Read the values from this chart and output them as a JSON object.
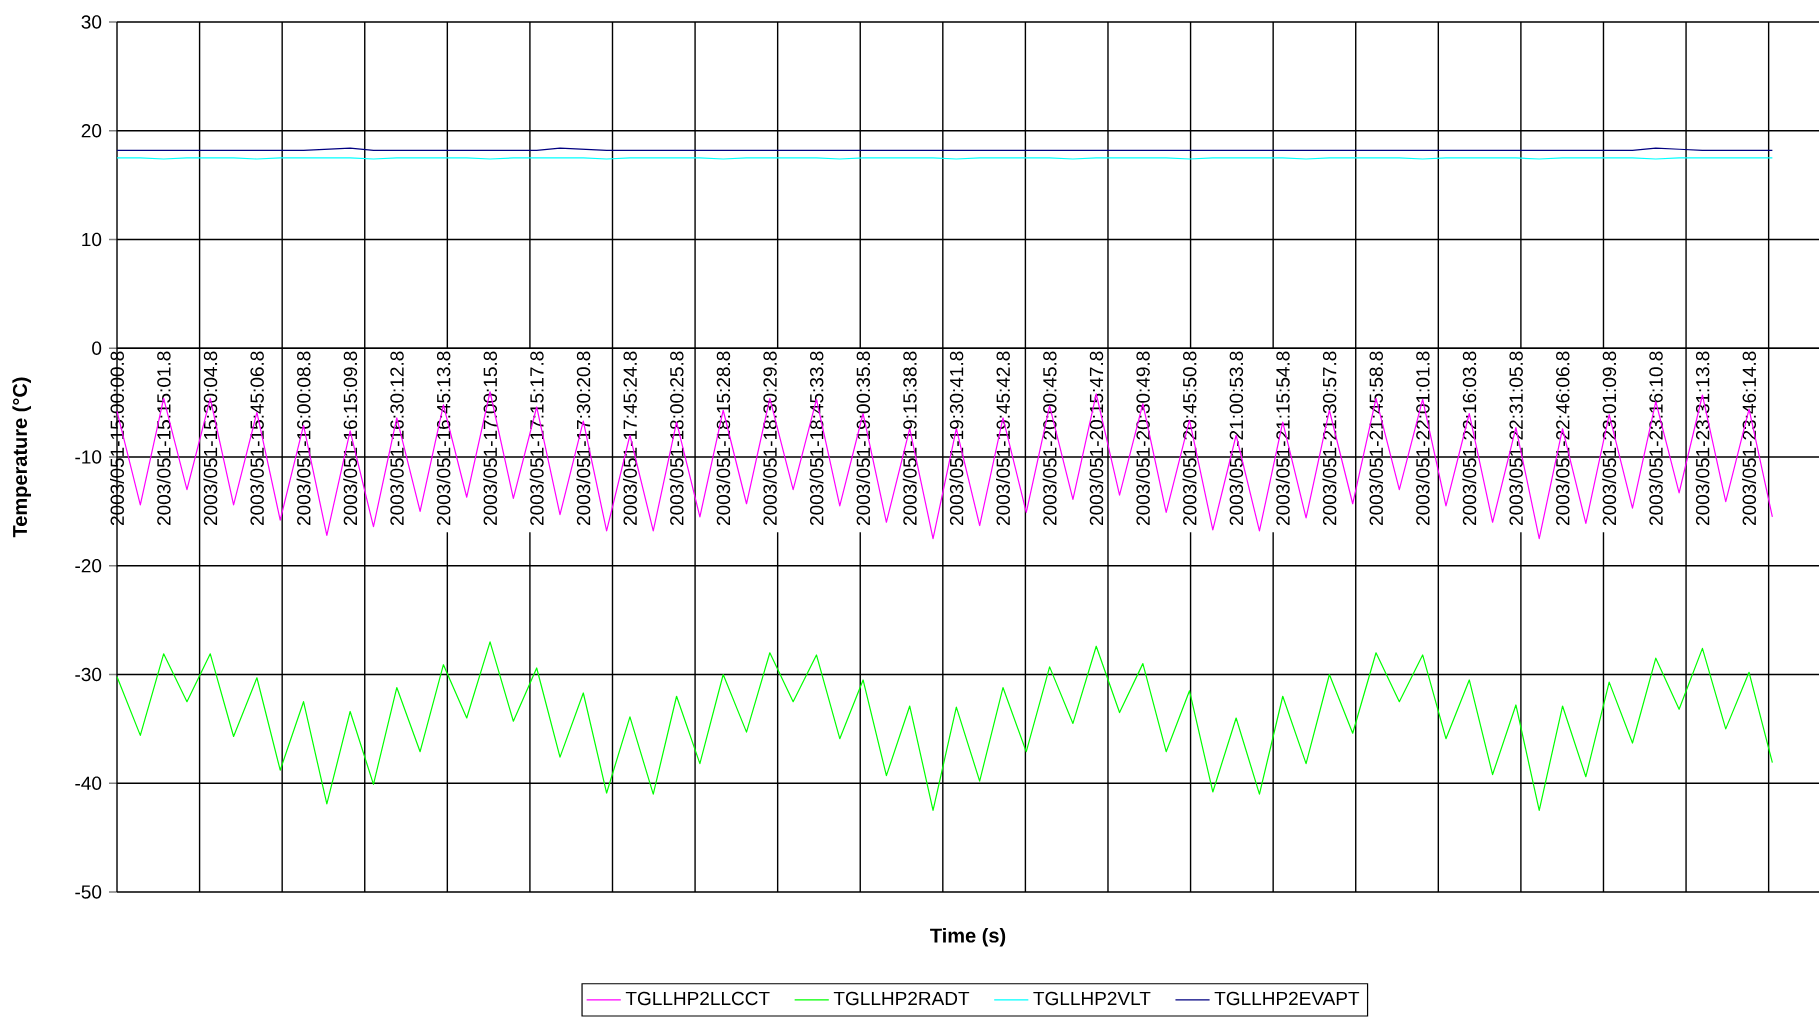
{
  "chart_data": {
    "type": "line",
    "xlabel": "Time (s)",
    "ylabel": "Temperature (°C)",
    "ylim": [
      -50,
      30
    ],
    "yticks": [
      -50,
      -40,
      -30,
      -20,
      -10,
      0,
      10,
      20,
      30
    ],
    "categories": [
      "2003/051-15:00:00.8",
      null,
      "2003/051-15:15:01.8",
      null,
      "2003/051-15:30:04.8",
      null,
      "2003/051-15:45:06.8",
      null,
      "2003/051-16:00:08.8",
      null,
      "2003/051-16:15:09.8",
      null,
      "2003/051-16:30:12.8",
      null,
      "2003/051-16:45:13.8",
      null,
      "2003/051-17:00:15.8",
      null,
      "2003/051-17:15:17.8",
      null,
      "2003/051-17:30:20.8",
      null,
      "2003/051-17:45:24.8",
      null,
      "2003/051-18:00:25.8",
      null,
      "2003/051-18:15:28.8",
      null,
      "2003/051-18:30:29.8",
      null,
      "2003/051-18:45:33.8",
      null,
      "2003/051-19:00:35.8",
      null,
      "2003/051-19:15:38.8",
      null,
      "2003/051-19:30:41.8",
      null,
      "2003/051-19:45:42.8",
      null,
      "2003/051-20:00:45.8",
      null,
      "2003/051-20:15:47.8",
      null,
      "2003/051-20:30:49.8",
      null,
      "2003/051-20:45:50.8",
      null,
      "2003/051-21:00:53.8",
      null,
      "2003/051-21:15:54.8",
      null,
      "2003/051-21:30:57.8",
      null,
      "2003/051-21:45:58.8",
      null,
      "2003/051-22:01:01.8",
      null,
      "2003/051-22:16:03.8",
      null,
      "2003/051-22:31:05.8",
      null,
      "2003/051-22:46:06.8",
      null,
      "2003/051-23:01:09.8",
      null,
      "2003/051-23:16:10.8",
      null,
      "2003/051-23:31:13.8",
      null,
      "2003/051-23:46:14.8",
      null,
      null,
      null
    ],
    "grid": true,
    "legend": "bottom",
    "marker": "none",
    "line_style": "solid",
    "series": [
      {
        "name": "TGLLHP2LLCCT",
        "color": "#ff00ff",
        "values": [
          -5.8,
          -14.4,
          -4.6,
          -13.0,
          -4.6,
          -14.4,
          -5.9,
          -15.8,
          -7.1,
          -17.2,
          -7.6,
          -16.4,
          -6.4,
          -15.0,
          -5.2,
          -13.7,
          -4.0,
          -13.8,
          -5.4,
          -15.3,
          -6.7,
          -16.8,
          -8.0,
          -16.8,
          -6.8,
          -15.5,
          -5.7,
          -14.3,
          -4.6,
          -13.0,
          -4.7,
          -14.5,
          -6.0,
          -16.0,
          -7.4,
          -17.5,
          -7.4,
          -16.3,
          -6.4,
          -15.1,
          -5.3,
          -13.9,
          -4.2,
          -13.5,
          -5.1,
          -15.1,
          -6.6,
          -16.7,
          -8.0,
          -16.8,
          -6.8,
          -15.6,
          -5.7,
          -14.3,
          -4.6,
          -13.0,
          -4.7,
          -14.5,
          -6.0,
          -16.0,
          -7.3,
          -17.5,
          -7.4,
          -16.1,
          -6.1,
          -14.7,
          -4.9,
          -13.3,
          -4.3,
          -14.1,
          -5.6,
          -15.5,
          null,
          null
        ]
      },
      {
        "name": "TGLLHP2RADT",
        "color": "#00ff00",
        "values": [
          -30.2,
          -35.6,
          -28.1,
          -32.5,
          -28.1,
          -35.7,
          -30.3,
          -38.8,
          -32.5,
          -41.9,
          -33.4,
          -40.1,
          -31.2,
          -37.1,
          -29.1,
          -34.0,
          -27.0,
          -34.3,
          -29.4,
          -37.6,
          -31.7,
          -40.9,
          -33.9,
          -41.0,
          -32.0,
          -38.2,
          -30.0,
          -35.3,
          -28.0,
          -32.5,
          -28.2,
          -35.9,
          -30.5,
          -39.3,
          -32.9,
          -42.5,
          -33.0,
          -39.8,
          -31.2,
          -37.1,
          -29.3,
          -34.5,
          -27.4,
          -33.5,
          -29.0,
          -37.1,
          -31.5,
          -40.8,
          -34.0,
          -41.0,
          -32.0,
          -38.2,
          -30.0,
          -35.4,
          -28.0,
          -32.5,
          -28.2,
          -35.9,
          -30.5,
          -39.2,
          -32.8,
          -42.5,
          -32.9,
          -39.4,
          -30.7,
          -36.3,
          -28.5,
          -33.2,
          -27.6,
          -35.0,
          -29.8,
          -38.1,
          null,
          null
        ]
      },
      {
        "name": "TGLLHP2VLT",
        "color": "#00ffff",
        "values": [
          17.5,
          17.5,
          17.4,
          17.5,
          17.5,
          17.5,
          17.4,
          17.5,
          17.5,
          17.5,
          17.5,
          17.4,
          17.5,
          17.5,
          17.5,
          17.5,
          17.4,
          17.5,
          17.5,
          17.5,
          17.5,
          17.4,
          17.5,
          17.5,
          17.5,
          17.5,
          17.4,
          17.5,
          17.5,
          17.5,
          17.5,
          17.4,
          17.5,
          17.5,
          17.5,
          17.5,
          17.4,
          17.5,
          17.5,
          17.5,
          17.5,
          17.4,
          17.5,
          17.5,
          17.5,
          17.5,
          17.4,
          17.5,
          17.5,
          17.5,
          17.5,
          17.4,
          17.5,
          17.5,
          17.5,
          17.5,
          17.4,
          17.5,
          17.5,
          17.5,
          17.5,
          17.4,
          17.5,
          17.5,
          17.5,
          17.5,
          17.4,
          17.5,
          17.5,
          17.5,
          17.5,
          17.5,
          null,
          null
        ]
      },
      {
        "name": "TGLLHP2EVAPT",
        "color": "#000080",
        "values": [
          18.2,
          18.2,
          18.2,
          18.2,
          18.2,
          18.2,
          18.2,
          18.2,
          18.2,
          18.3,
          18.4,
          18.2,
          18.2,
          18.2,
          18.2,
          18.2,
          18.2,
          18.2,
          18.2,
          18.4,
          18.3,
          18.2,
          18.2,
          18.2,
          18.2,
          18.2,
          18.2,
          18.2,
          18.2,
          18.2,
          18.2,
          18.2,
          18.2,
          18.2,
          18.2,
          18.2,
          18.2,
          18.2,
          18.2,
          18.2,
          18.2,
          18.2,
          18.2,
          18.2,
          18.2,
          18.2,
          18.2,
          18.2,
          18.2,
          18.2,
          18.2,
          18.2,
          18.2,
          18.2,
          18.2,
          18.2,
          18.2,
          18.2,
          18.2,
          18.2,
          18.2,
          18.2,
          18.2,
          18.2,
          18.2,
          18.2,
          18.4,
          18.3,
          18.2,
          18.2,
          18.2,
          18.2,
          null,
          null
        ]
      }
    ]
  }
}
